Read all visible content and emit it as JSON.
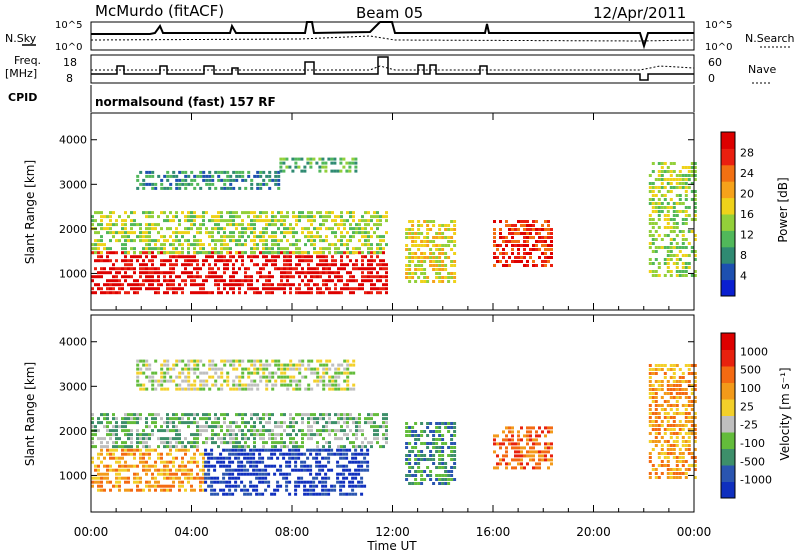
{
  "header": {
    "station": "McMurdo (fitACF)",
    "beam": "Beam 05",
    "date": "12/Apr/2011"
  },
  "status_panels": {
    "nsky_label": "N.Sky",
    "nsearch_label": "N.Search",
    "noise_ticks": [
      "10^5",
      "10^0"
    ],
    "freq_label_1": "Freq.",
    "freq_label_2": "[MHz]",
    "freq_ticks": [
      "18",
      "8"
    ],
    "nave_label": "Nave",
    "nave_ticks": [
      "60",
      "0"
    ],
    "cpid_label": "CPID",
    "cpid_value": "normalsound (fast) 157 RF"
  },
  "chart_data": [
    {
      "type": "heatmap",
      "name": "power",
      "ylabel": "Slant Range [km]",
      "yticks": [
        "4000",
        "3000",
        "2000",
        "1000"
      ],
      "ylim": [
        180,
        4600
      ],
      "xlim": [
        0,
        24
      ],
      "colorbar_label": "Power [dB]",
      "colorbar_ticks": [
        "28",
        "24",
        "20",
        "16",
        "12",
        "8",
        "4"
      ],
      "colors": [
        "#0a1fd0",
        "#1d50b0",
        "#2f8a72",
        "#51b85a",
        "#93d03a",
        "#efd21a",
        "#f6a21a",
        "#f27012",
        "#ea1f10",
        "#dd0000"
      ],
      "echo_regions": [
        {
          "t0": 0.0,
          "t1": 11.8,
          "r0": 600,
          "r1": 1500,
          "level": 9
        },
        {
          "t0": 0.0,
          "t1": 11.8,
          "r0": 1500,
          "r1": 2400,
          "level": 4
        },
        {
          "t0": 1.8,
          "t1": 7.5,
          "r0": 2900,
          "r1": 3300,
          "level": 2
        },
        {
          "t0": 7.5,
          "t1": 10.5,
          "r0": 3300,
          "r1": 3600,
          "level": 3
        },
        {
          "t0": 12.5,
          "t1": 14.5,
          "r0": 800,
          "r1": 2200,
          "level": 5
        },
        {
          "t0": 16.0,
          "t1": 18.3,
          "r0": 1200,
          "r1": 2200,
          "level": 8
        },
        {
          "t0": 22.2,
          "t1": 24.0,
          "r0": 900,
          "r1": 3500,
          "level": 4
        }
      ]
    },
    {
      "type": "heatmap",
      "name": "velocity",
      "ylabel": "Slant Range [km]",
      "xlabel": "Time UT",
      "xticks": [
        "00:00",
        "04:00",
        "08:00",
        "12:00",
        "16:00",
        "20:00",
        "00:00"
      ],
      "yticks": [
        "4000",
        "3000",
        "2000",
        "1000"
      ],
      "ylim": [
        180,
        4600
      ],
      "xlim": [
        0,
        24
      ],
      "colorbar_label": "Velocity [m s⁻¹]",
      "colorbar_ticks": [
        "1000",
        "500",
        "100",
        "25",
        "-25",
        "-100",
        "-500",
        "-1000"
      ],
      "colors": [
        "#0f2fbe",
        "#2a55b0",
        "#3d8f6a",
        "#63bc3b",
        "#bfbfbf",
        "#f3d02a",
        "#f39a1a",
        "#f46a12",
        "#e8210e",
        "#dd0000"
      ],
      "echo_regions": [
        {
          "t0": 0.0,
          "t1": 4.5,
          "r0": 700,
          "r1": 1600,
          "level": 6
        },
        {
          "t0": 4.5,
          "t1": 11.0,
          "r0": 600,
          "r1": 1600,
          "level": 0
        },
        {
          "t0": 0.0,
          "t1": 11.8,
          "r0": 1600,
          "r1": 2400,
          "level": 3
        },
        {
          "t0": 1.8,
          "t1": 10.5,
          "r0": 2900,
          "r1": 3600,
          "level": 4
        },
        {
          "t0": 12.5,
          "t1": 14.5,
          "r0": 800,
          "r1": 2200,
          "level": 2
        },
        {
          "t0": 16.0,
          "t1": 18.3,
          "r0": 1200,
          "r1": 2100,
          "level": 7
        },
        {
          "t0": 22.2,
          "t1": 24.0,
          "r0": 900,
          "r1": 3500,
          "level": 6
        }
      ]
    }
  ]
}
